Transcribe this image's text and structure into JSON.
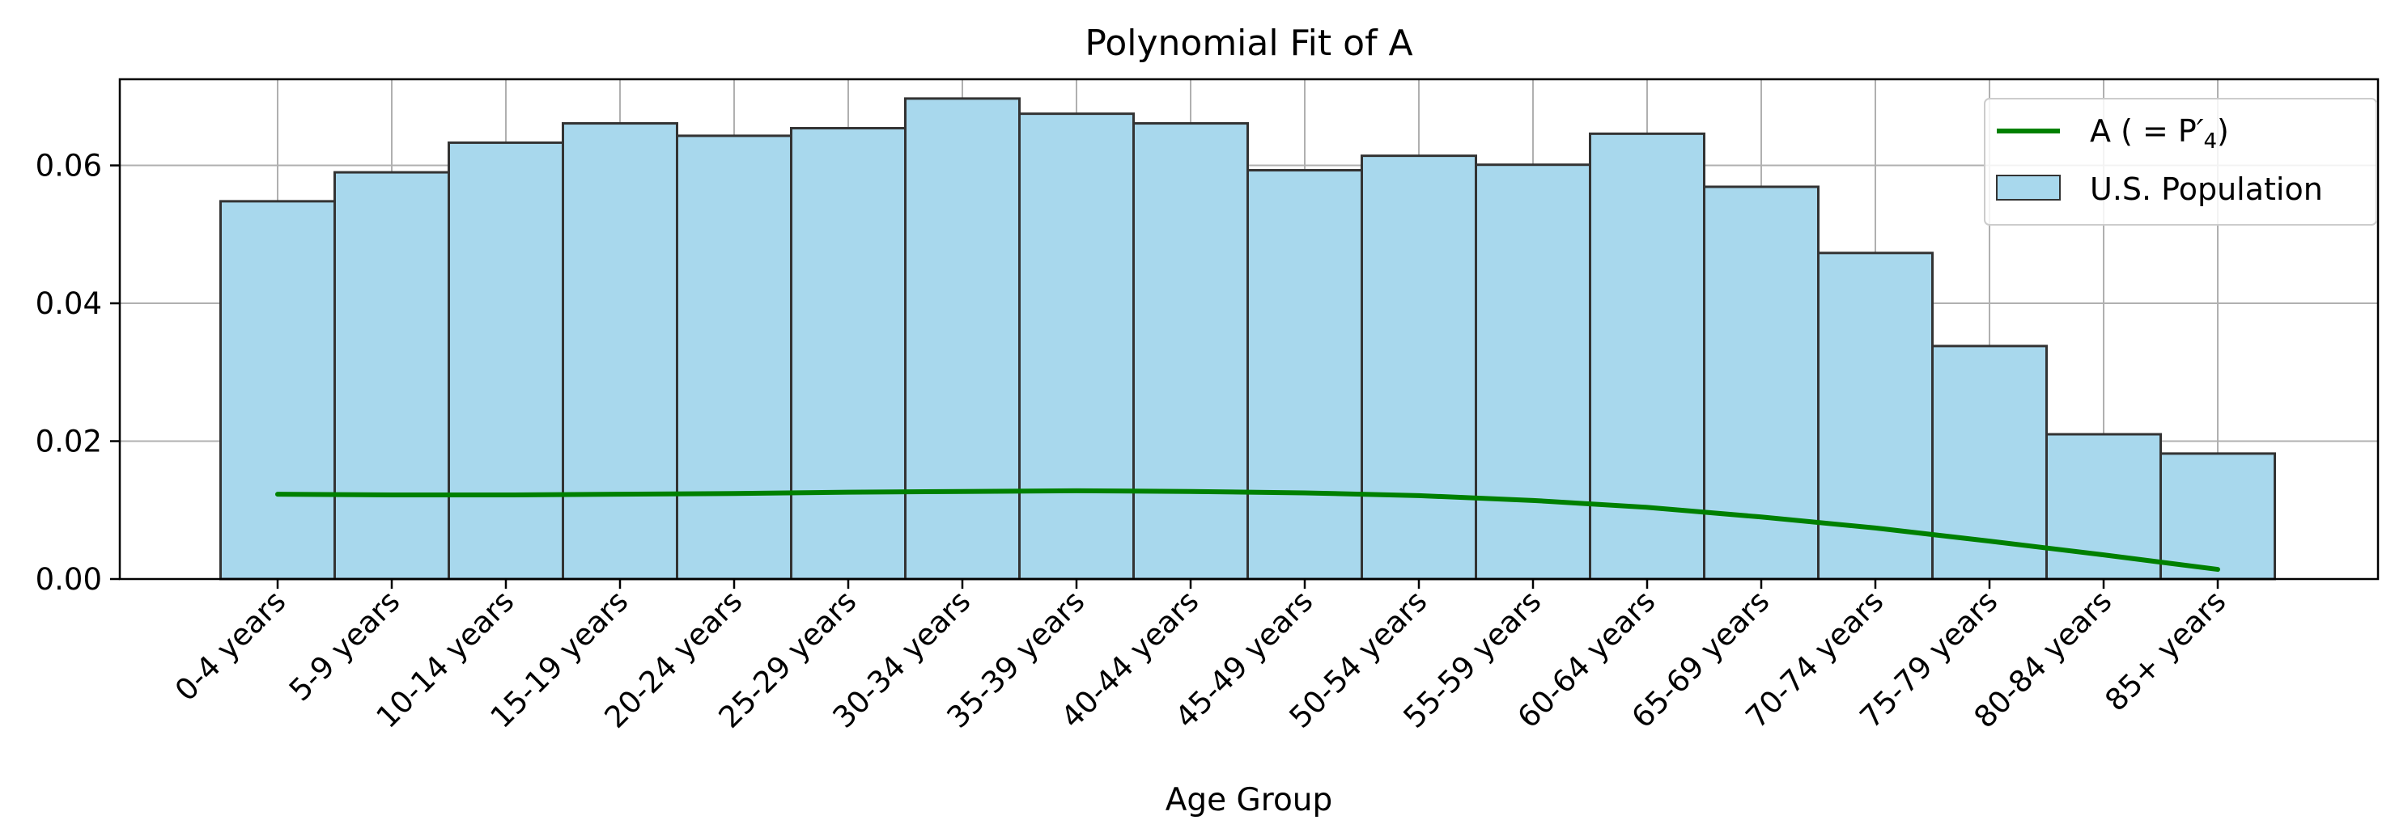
{
  "chart_data": {
    "type": "bar",
    "title": "Polynomial Fit of A",
    "xlabel": "Age Group",
    "ylabel": "",
    "ylim": [
      0,
      0.0725
    ],
    "yticks": [
      0.0,
      0.02,
      0.04,
      0.06
    ],
    "ytick_labels": [
      "0.00",
      "0.02",
      "0.04",
      "0.06"
    ],
    "grid": true,
    "legend_position": "top-right",
    "categories": [
      "0-4 years",
      "5-9 years",
      "10-14 years",
      "15-19 years",
      "20-24 years",
      "25-29 years",
      "30-34 years",
      "35-39 years",
      "40-44 years",
      "45-49 years",
      "50-54 years",
      "55-59 years",
      "60-64 years",
      "65-69 years",
      "70-74 years",
      "75-79 years",
      "80-84 years",
      "85+ years"
    ],
    "series": [
      {
        "name": "U.S. Population",
        "kind": "bar",
        "color": "#a8d8ed",
        "edge_color": "#333333",
        "values": [
          0.0548,
          0.059,
          0.0633,
          0.0661,
          0.0643,
          0.0654,
          0.0697,
          0.0675,
          0.0661,
          0.0593,
          0.0614,
          0.0601,
          0.0646,
          0.0569,
          0.0473,
          0.0338,
          0.021,
          0.0182
        ]
      },
      {
        "name": "A",
        "legend_label": "A ( = P",
        "legend_sub": "4",
        "legend_sup": "′",
        "legend_close": ")",
        "kind": "line",
        "color": "#008000",
        "values": [
          0.0123,
          0.0122,
          0.0122,
          0.0123,
          0.0124,
          0.0126,
          0.0127,
          0.0128,
          0.0127,
          0.0125,
          0.0121,
          0.0114,
          0.0104,
          0.009,
          0.0074,
          0.0055,
          0.0035,
          0.0014
        ]
      }
    ]
  }
}
